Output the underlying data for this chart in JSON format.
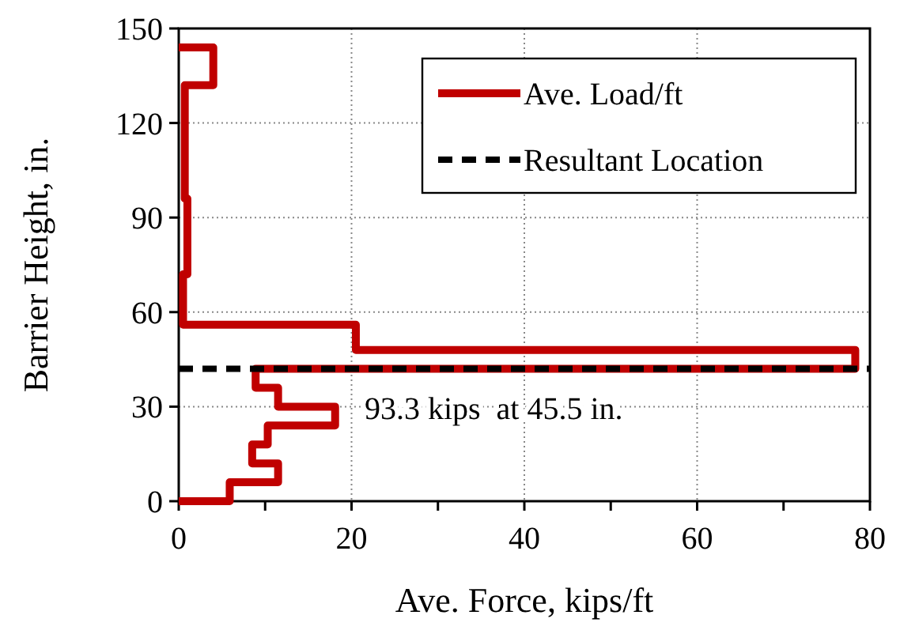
{
  "chart_data": {
    "type": "line",
    "xlabel": "Ave. Force, kips/ft",
    "ylabel": "Barrier Height, in.",
    "xlim": [
      0,
      80
    ],
    "xticks": [
      0,
      {
        "value": 10,
        "label": null
      },
      20,
      {
        "value": 30,
        "label": null
      },
      40,
      {
        "value": 50,
        "label": null
      },
      60,
      {
        "value": 70,
        "label": null
      },
      80
    ],
    "ylim": [
      0,
      150
    ],
    "yticks": [
      0,
      30,
      60,
      90,
      120,
      150
    ],
    "grid": true,
    "legend": "top right",
    "series": [
      {
        "name": "Ave. Load/ft",
        "color": "#c00000",
        "line_style": "solid",
        "x": [
          0,
          5.9,
          5.9,
          11.5,
          11.5,
          8.5,
          8.5,
          10.3,
          10.3,
          18.1,
          18.1,
          11.5,
          11.5,
          8.9,
          8.9,
          78.3,
          78.3,
          20.5,
          20.5,
          0.5,
          0.5,
          1,
          1,
          0.7,
          0.7,
          4,
          4,
          0
        ],
        "values": [
          0,
          0,
          6,
          6,
          12,
          12,
          18,
          18,
          24,
          24,
          30,
          30,
          36,
          36,
          42,
          42,
          48,
          48,
          56,
          56,
          72,
          72,
          96,
          96,
          132,
          132,
          144,
          144
        ]
      },
      {
        "name": "Resultant Location",
        "color": "#000000",
        "line_style": "dashed",
        "x": [
          0,
          80
        ],
        "values": [
          42,
          42
        ]
      }
    ],
    "annotations": [
      "93.3 kips  at 45.5 in."
    ]
  }
}
